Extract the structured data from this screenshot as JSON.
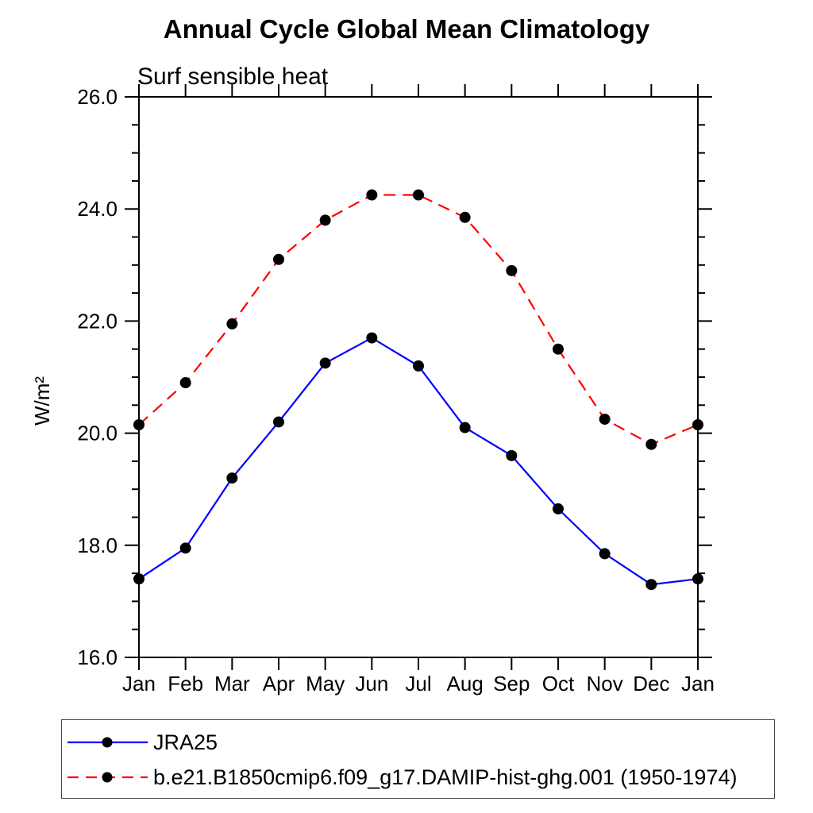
{
  "title": "Annual Cycle Global Mean Climatology",
  "subtitle": "Surf sensible heat",
  "colors": {
    "background": "#ffffff",
    "axis": "#000000",
    "text": "#000000",
    "marker": "#000000",
    "series1": "#0000ff",
    "series2": "#ff0000"
  },
  "chart_data": {
    "type": "line",
    "categories": [
      "Jan",
      "Feb",
      "Mar",
      "Apr",
      "May",
      "Jun",
      "Jul",
      "Aug",
      "Sep",
      "Oct",
      "Nov",
      "Dec",
      "Jan"
    ],
    "xlabel": "",
    "ylabel": "W/m²",
    "ylim": [
      16.0,
      26.0
    ],
    "ytick_major_values": [
      16.0,
      18.0,
      20.0,
      22.0,
      24.0,
      26.0
    ],
    "ytick_major_labels": [
      "16.0",
      "18.0",
      "20.0",
      "22.0",
      "24.0",
      "26.0"
    ],
    "ytick_minor_step": 0.5,
    "grid": false,
    "legend_position": "bottom-left-box",
    "marker": "filled-black-circle",
    "series": [
      {
        "name": "JRA25",
        "color": "#0000ff",
        "line_style": "solid",
        "values": [
          17.4,
          17.95,
          19.2,
          20.2,
          21.25,
          21.7,
          21.2,
          20.1,
          19.6,
          18.65,
          17.85,
          17.3,
          17.4
        ]
      },
      {
        "name": "b.e21.B1850cmip6.f09_g17.DAMIP-hist-ghg.001 (1950-1974)",
        "color": "#ff0000",
        "line_style": "dashed",
        "values": [
          20.15,
          20.9,
          21.95,
          23.1,
          23.8,
          24.25,
          24.25,
          23.85,
          22.9,
          21.5,
          20.25,
          19.8,
          20.15
        ]
      }
    ]
  }
}
